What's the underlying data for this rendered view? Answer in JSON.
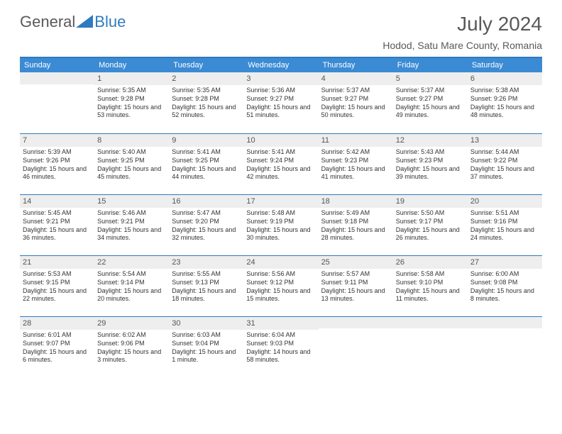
{
  "logo": {
    "general": "General",
    "blue": "Blue"
  },
  "title": "July 2024",
  "location": "Hodod, Satu Mare County, Romania",
  "colors": {
    "header_bg": "#3b8bd4",
    "accent": "#2f7bbf",
    "daynum_bg": "#eeeeee",
    "text": "#333333",
    "title_text": "#595959"
  },
  "weekdays": [
    "Sunday",
    "Monday",
    "Tuesday",
    "Wednesday",
    "Thursday",
    "Friday",
    "Saturday"
  ],
  "first_weekday_index": 1,
  "days": [
    {
      "n": 1,
      "sr": "5:35 AM",
      "ss": "9:28 PM",
      "dl": "15 hours and 53 minutes."
    },
    {
      "n": 2,
      "sr": "5:35 AM",
      "ss": "9:28 PM",
      "dl": "15 hours and 52 minutes."
    },
    {
      "n": 3,
      "sr": "5:36 AM",
      "ss": "9:27 PM",
      "dl": "15 hours and 51 minutes."
    },
    {
      "n": 4,
      "sr": "5:37 AM",
      "ss": "9:27 PM",
      "dl": "15 hours and 50 minutes."
    },
    {
      "n": 5,
      "sr": "5:37 AM",
      "ss": "9:27 PM",
      "dl": "15 hours and 49 minutes."
    },
    {
      "n": 6,
      "sr": "5:38 AM",
      "ss": "9:26 PM",
      "dl": "15 hours and 48 minutes."
    },
    {
      "n": 7,
      "sr": "5:39 AM",
      "ss": "9:26 PM",
      "dl": "15 hours and 46 minutes."
    },
    {
      "n": 8,
      "sr": "5:40 AM",
      "ss": "9:25 PM",
      "dl": "15 hours and 45 minutes."
    },
    {
      "n": 9,
      "sr": "5:41 AM",
      "ss": "9:25 PM",
      "dl": "15 hours and 44 minutes."
    },
    {
      "n": 10,
      "sr": "5:41 AM",
      "ss": "9:24 PM",
      "dl": "15 hours and 42 minutes."
    },
    {
      "n": 11,
      "sr": "5:42 AM",
      "ss": "9:23 PM",
      "dl": "15 hours and 41 minutes."
    },
    {
      "n": 12,
      "sr": "5:43 AM",
      "ss": "9:23 PM",
      "dl": "15 hours and 39 minutes."
    },
    {
      "n": 13,
      "sr": "5:44 AM",
      "ss": "9:22 PM",
      "dl": "15 hours and 37 minutes."
    },
    {
      "n": 14,
      "sr": "5:45 AM",
      "ss": "9:21 PM",
      "dl": "15 hours and 36 minutes."
    },
    {
      "n": 15,
      "sr": "5:46 AM",
      "ss": "9:21 PM",
      "dl": "15 hours and 34 minutes."
    },
    {
      "n": 16,
      "sr": "5:47 AM",
      "ss": "9:20 PM",
      "dl": "15 hours and 32 minutes."
    },
    {
      "n": 17,
      "sr": "5:48 AM",
      "ss": "9:19 PM",
      "dl": "15 hours and 30 minutes."
    },
    {
      "n": 18,
      "sr": "5:49 AM",
      "ss": "9:18 PM",
      "dl": "15 hours and 28 minutes."
    },
    {
      "n": 19,
      "sr": "5:50 AM",
      "ss": "9:17 PM",
      "dl": "15 hours and 26 minutes."
    },
    {
      "n": 20,
      "sr": "5:51 AM",
      "ss": "9:16 PM",
      "dl": "15 hours and 24 minutes."
    },
    {
      "n": 21,
      "sr": "5:53 AM",
      "ss": "9:15 PM",
      "dl": "15 hours and 22 minutes."
    },
    {
      "n": 22,
      "sr": "5:54 AM",
      "ss": "9:14 PM",
      "dl": "15 hours and 20 minutes."
    },
    {
      "n": 23,
      "sr": "5:55 AM",
      "ss": "9:13 PM",
      "dl": "15 hours and 18 minutes."
    },
    {
      "n": 24,
      "sr": "5:56 AM",
      "ss": "9:12 PM",
      "dl": "15 hours and 15 minutes."
    },
    {
      "n": 25,
      "sr": "5:57 AM",
      "ss": "9:11 PM",
      "dl": "15 hours and 13 minutes."
    },
    {
      "n": 26,
      "sr": "5:58 AM",
      "ss": "9:10 PM",
      "dl": "15 hours and 11 minutes."
    },
    {
      "n": 27,
      "sr": "6:00 AM",
      "ss": "9:08 PM",
      "dl": "15 hours and 8 minutes."
    },
    {
      "n": 28,
      "sr": "6:01 AM",
      "ss": "9:07 PM",
      "dl": "15 hours and 6 minutes."
    },
    {
      "n": 29,
      "sr": "6:02 AM",
      "ss": "9:06 PM",
      "dl": "15 hours and 3 minutes."
    },
    {
      "n": 30,
      "sr": "6:03 AM",
      "ss": "9:04 PM",
      "dl": "15 hours and 1 minute."
    },
    {
      "n": 31,
      "sr": "6:04 AM",
      "ss": "9:03 PM",
      "dl": "14 hours and 58 minutes."
    }
  ],
  "labels": {
    "sunrise": "Sunrise:",
    "sunset": "Sunset:",
    "daylight": "Daylight:"
  }
}
